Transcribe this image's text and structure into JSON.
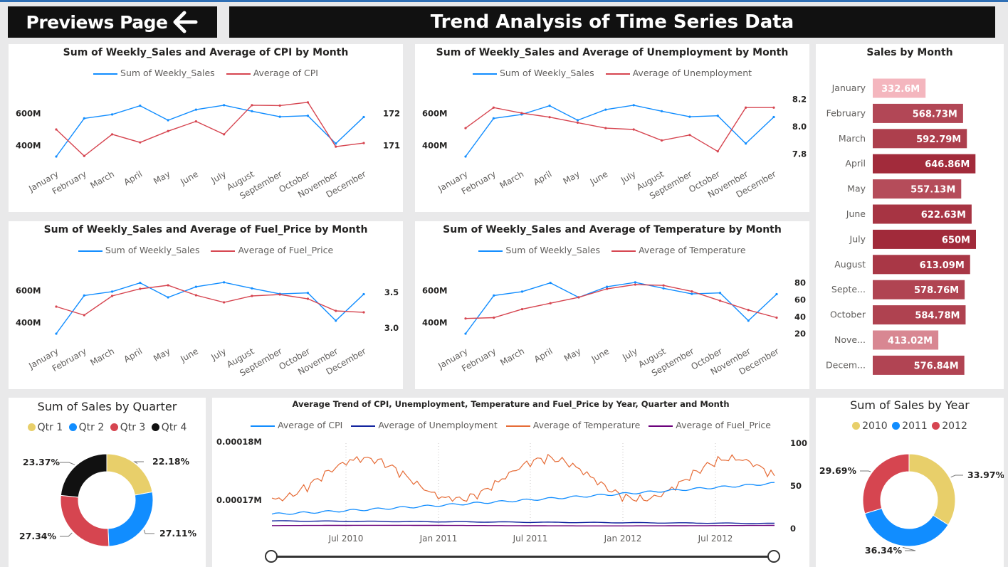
{
  "header": {
    "back_label": "Previews Page",
    "title": "Trend Analysis of Time Series Data"
  },
  "months": [
    "January",
    "February",
    "March",
    "April",
    "May",
    "June",
    "July",
    "August",
    "September",
    "October",
    "November",
    "December"
  ],
  "colors": {
    "sales": "#118dff",
    "secondary": "#d64550",
    "dark_navy": "#12239e",
    "orange": "#e66c37",
    "purple": "#6b007b"
  },
  "chart_data": [
    {
      "id": "cpi",
      "type": "line",
      "title": "Sum of Weekly_Sales and Average of CPI by Month",
      "categories": [
        "January",
        "February",
        "March",
        "April",
        "May",
        "June",
        "July",
        "August",
        "September",
        "October",
        "November",
        "December"
      ],
      "series": [
        {
          "name": "Sum of Weekly_Sales",
          "axis": "left",
          "color": "#118dff",
          "values": [
            332.6,
            568.73,
            592.79,
            646.86,
            557.13,
            622.63,
            650.0,
            613.09,
            578.76,
            584.78,
            413.02,
            576.84
          ]
        },
        {
          "name": "Average of CPI",
          "axis": "right",
          "color": "#d64550",
          "values": [
            171.5,
            170.68,
            171.35,
            171.1,
            171.45,
            171.75,
            171.35,
            172.25,
            172.24,
            172.34,
            170.97,
            171.08
          ]
        }
      ],
      "left_axis": {
        "ticks": [
          {
            "v": 400,
            "label": "400M"
          },
          {
            "v": 600,
            "label": "600M"
          }
        ],
        "range": [
          280,
          720
        ]
      },
      "right_axis": {
        "ticks": [
          {
            "v": 171,
            "label": "171"
          },
          {
            "v": 172,
            "label": "172"
          }
        ],
        "range": [
          170.4,
          172.6
        ]
      }
    },
    {
      "id": "unemp",
      "type": "line",
      "title": "Sum of Weekly_Sales and Average of Unemployment by Month",
      "categories": [
        "January",
        "February",
        "March",
        "April",
        "May",
        "June",
        "July",
        "August",
        "September",
        "October",
        "November",
        "December"
      ],
      "series": [
        {
          "name": "Sum of Weekly_Sales",
          "axis": "left",
          "color": "#118dff",
          "values": [
            332.6,
            568.73,
            592.79,
            646.86,
            557.13,
            622.63,
            650.0,
            613.09,
            578.76,
            584.78,
            413.02,
            576.84
          ]
        },
        {
          "name": "Average of Unemployment",
          "axis": "right",
          "color": "#d64550",
          "values": [
            7.99,
            8.14,
            8.1,
            8.07,
            8.03,
            7.99,
            7.98,
            7.9,
            7.94,
            7.82,
            8.14,
            8.14
          ]
        }
      ],
      "left_axis": {
        "ticks": [
          {
            "v": 400,
            "label": "400M"
          },
          {
            "v": 600,
            "label": "600M"
          }
        ],
        "range": [
          280,
          720
        ]
      },
      "right_axis": {
        "ticks": [
          {
            "v": 7.8,
            "label": "7.8"
          },
          {
            "v": 8.0,
            "label": "8.0"
          },
          {
            "v": 8.2,
            "label": "8.2"
          }
        ],
        "range": [
          7.72,
          8.24
        ]
      }
    },
    {
      "id": "fuel",
      "type": "line",
      "title": "Sum of Weekly_Sales and Average of Fuel_Price by Month",
      "categories": [
        "January",
        "February",
        "March",
        "April",
        "May",
        "June",
        "July",
        "August",
        "September",
        "October",
        "November",
        "December"
      ],
      "series": [
        {
          "name": "Sum of Weekly_Sales",
          "axis": "left",
          "color": "#118dff",
          "values": [
            332.6,
            568.73,
            592.79,
            646.86,
            557.13,
            622.63,
            650.0,
            613.09,
            578.76,
            584.78,
            413.02,
            576.84
          ]
        },
        {
          "name": "Average of Fuel_Price",
          "axis": "right",
          "color": "#d64550",
          "values": [
            3.3,
            3.18,
            3.45,
            3.55,
            3.6,
            3.46,
            3.36,
            3.45,
            3.47,
            3.41,
            3.24,
            3.22
          ]
        }
      ],
      "left_axis": {
        "ticks": [
          {
            "v": 400,
            "label": "400M"
          },
          {
            "v": 600,
            "label": "600M"
          }
        ],
        "range": [
          280,
          720
        ]
      },
      "right_axis": {
        "ticks": [
          {
            "v": 3.0,
            "label": "3.0"
          },
          {
            "v": 3.5,
            "label": "3.5"
          }
        ],
        "range": [
          2.8,
          3.8
        ]
      }
    },
    {
      "id": "temp",
      "type": "line",
      "title": "Sum of Weekly_Sales and Average of Temperature by Month",
      "categories": [
        "January",
        "February",
        "March",
        "April",
        "May",
        "June",
        "July",
        "August",
        "September",
        "October",
        "November",
        "December"
      ],
      "series": [
        {
          "name": "Sum of Weekly_Sales",
          "axis": "left",
          "color": "#118dff",
          "values": [
            332.6,
            568.73,
            592.79,
            646.86,
            557.13,
            622.63,
            650.0,
            613.09,
            578.76,
            584.78,
            413.02,
            576.84
          ]
        },
        {
          "name": "Average of Temperature",
          "axis": "right",
          "color": "#d64550",
          "values": [
            38,
            39,
            49,
            56,
            63,
            73,
            78,
            77,
            70,
            59,
            48,
            39
          ]
        }
      ],
      "left_axis": {
        "ticks": [
          {
            "v": 400,
            "label": "400M"
          },
          {
            "v": 600,
            "label": "600M"
          }
        ],
        "range": [
          280,
          720
        ]
      },
      "right_axis": {
        "ticks": [
          {
            "v": 20,
            "label": "20"
          },
          {
            "v": 40,
            "label": "40"
          },
          {
            "v": 60,
            "label": "60"
          },
          {
            "v": 80,
            "label": "80"
          }
        ],
        "range": [
          10,
          94
        ]
      }
    },
    {
      "id": "sales_by_month",
      "type": "bar",
      "title": "Sales by Month",
      "categories": [
        "January",
        "February",
        "March",
        "April",
        "May",
        "June",
        "July",
        "August",
        "Septe...",
        "October",
        "Nove...",
        "Decem..."
      ],
      "values": [
        332.6,
        568.73,
        592.79,
        646.86,
        557.13,
        622.63,
        650.0,
        613.09,
        578.76,
        584.78,
        413.02,
        576.84
      ],
      "labels": [
        "332.6M",
        "568.73M",
        "592.79M",
        "646.86M",
        "557.13M",
        "622.63M",
        "650M",
        "613.09M",
        "578.76M",
        "584.78M",
        "413.02M",
        "576.84M"
      ],
      "color_low": "#f4b6be",
      "color_high": "#a12a3a"
    },
    {
      "id": "quarter",
      "type": "pie",
      "title": "Sum of Sales by Quarter",
      "categories": [
        "Qtr 1",
        "Qtr 2",
        "Qtr 3",
        "Qtr 4"
      ],
      "values": [
        22.18,
        27.11,
        27.34,
        23.37
      ],
      "labels": [
        "22.18%",
        "27.11%",
        "27.34%",
        "23.37%"
      ],
      "colors": [
        "#e8cf6a",
        "#118dff",
        "#d64550",
        "#111111"
      ]
    },
    {
      "id": "trend",
      "type": "line",
      "title": "Average Trend of CPI, Unemployment, Temperature and Fuel_Price by Year, Quarter and Month",
      "x_ticks": [
        "Jul 2010",
        "Jan 2011",
        "Jul 2011",
        "Jan 2012",
        "Jul 2012"
      ],
      "left_ticks": [
        "0.00018M",
        "0.00017M"
      ],
      "right_ticks": [
        "100",
        "50",
        "0"
      ],
      "series": [
        {
          "name": "Average of CPI",
          "color": "#118dff"
        },
        {
          "name": "Average of Unemployment",
          "color": "#12239e"
        },
        {
          "name": "Average of Temperature",
          "color": "#e66c37"
        },
        {
          "name": "Average of Fuel_Price",
          "color": "#6b007b"
        }
      ]
    },
    {
      "id": "year",
      "type": "pie",
      "title": "Sum of Sales by Year",
      "categories": [
        "2010",
        "2011",
        "2012"
      ],
      "values": [
        33.97,
        36.34,
        29.69
      ],
      "labels": [
        "33.97%",
        "36.34%",
        "29.69%"
      ],
      "colors": [
        "#e8cf6a",
        "#118dff",
        "#d64550"
      ]
    }
  ]
}
